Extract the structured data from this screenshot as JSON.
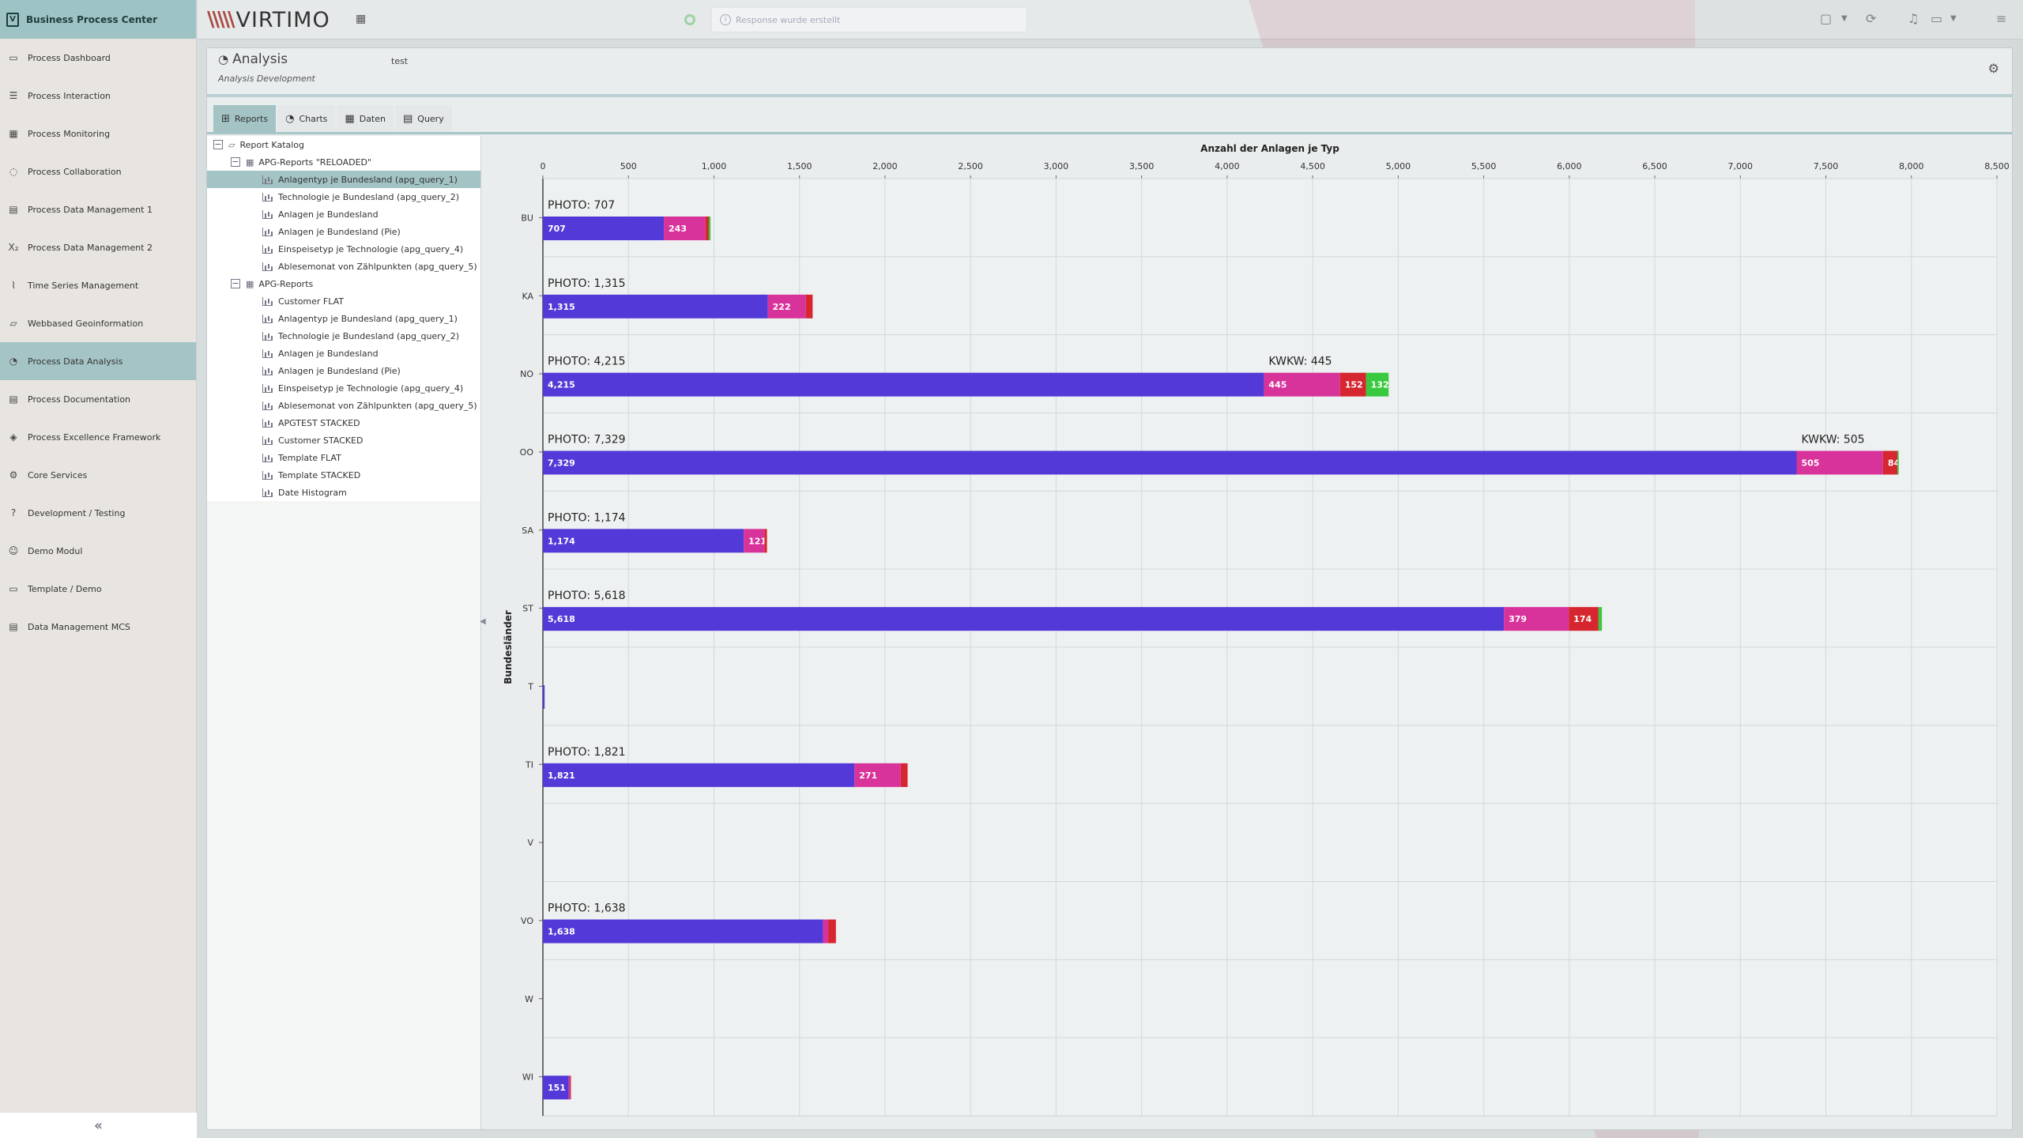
{
  "app": {
    "title": "Business Process Center"
  },
  "sidebar": {
    "items": [
      {
        "label": "Process Dashboard",
        "icon": "monitor-icon"
      },
      {
        "label": "Process Interaction",
        "icon": "list-icon"
      },
      {
        "label": "Process Monitoring",
        "icon": "table-icon"
      },
      {
        "label": "Process Collaboration",
        "icon": "chat-icon"
      },
      {
        "label": "Process Data Management 1",
        "icon": "database-icon"
      },
      {
        "label": "Process Data Management 2",
        "icon": "subscript-icon"
      },
      {
        "label": "Time Series Management",
        "icon": "line-chart-icon"
      },
      {
        "label": "Webbased Geoinformation",
        "icon": "map-icon"
      },
      {
        "label": "Process Data Analysis",
        "icon": "pie-icon"
      },
      {
        "label": "Process Documentation",
        "icon": "document-icon"
      },
      {
        "label": "Process Excellence Framework",
        "icon": "shield-icon"
      },
      {
        "label": "Core Services",
        "icon": "cogs-icon"
      },
      {
        "label": "Development / Testing",
        "icon": "question-icon"
      },
      {
        "label": "Demo Modul",
        "icon": "robot-icon"
      },
      {
        "label": "Template / Demo",
        "icon": "laptop-icon"
      },
      {
        "label": "Data Management MCS",
        "icon": "database-icon"
      }
    ],
    "active_index": 8,
    "collapse_label": "«"
  },
  "topbar": {
    "brand": "VIRTIMO",
    "brand_mark": "\\\\\\\\\\",
    "response_placeholder": "Response wurde erstellt"
  },
  "panel": {
    "title": "Analysis",
    "subtitle": "Analysis Development",
    "extra": "test"
  },
  "tabs": [
    {
      "label": "Reports",
      "icon": "sitemap-icon"
    },
    {
      "label": "Charts",
      "icon": "pie-chart-icon"
    },
    {
      "label": "Daten",
      "icon": "table-icon"
    },
    {
      "label": "Query",
      "icon": "database-icon"
    }
  ],
  "tree": [
    {
      "label": "Report Katalog",
      "level": 0,
      "type": "folder",
      "toggle": "−"
    },
    {
      "label": "APG-Reports \"RELOADED\"",
      "level": 1,
      "type": "group",
      "toggle": "−"
    },
    {
      "label": "Anlagentyp je Bundesland (apg_query_1)",
      "level": 2,
      "type": "report",
      "selected": true
    },
    {
      "label": "Technologie je Bundesland (apg_query_2)",
      "level": 2,
      "type": "report"
    },
    {
      "label": "Anlagen je Bundesland",
      "level": 2,
      "type": "report"
    },
    {
      "label": "Anlagen je Bundesland (Pie)",
      "level": 2,
      "type": "report"
    },
    {
      "label": "Einspeisetyp je Technologie (apg_query_4)",
      "level": 2,
      "type": "report"
    },
    {
      "label": "Ablesemonat von Zählpunkten (apg_query_5)",
      "level": 2,
      "type": "report"
    },
    {
      "label": "APG-Reports",
      "level": 1,
      "type": "group",
      "toggle": "−"
    },
    {
      "label": "Customer FLAT",
      "level": 2,
      "type": "report"
    },
    {
      "label": "Anlagentyp je Bundesland (apg_query_1)",
      "level": 2,
      "type": "report"
    },
    {
      "label": "Technologie je Bundesland (apg_query_2)",
      "level": 2,
      "type": "report"
    },
    {
      "label": "Anlagen je Bundesland",
      "level": 2,
      "type": "report"
    },
    {
      "label": "Anlagen je Bundesland (Pie)",
      "level": 2,
      "type": "report"
    },
    {
      "label": "Einspeisetyp je Technologie (apg_query_4)",
      "level": 2,
      "type": "report"
    },
    {
      "label": "Ablesemonat von Zählpunkten (apg_query_5)",
      "level": 2,
      "type": "report"
    },
    {
      "label": "APGTEST STACKED",
      "level": 2,
      "type": "report"
    },
    {
      "label": "Customer STACKED",
      "level": 2,
      "type": "report"
    },
    {
      "label": "Template FLAT",
      "level": 2,
      "type": "report"
    },
    {
      "label": "Template STACKED",
      "level": 2,
      "type": "report"
    },
    {
      "label": "Date Histogram",
      "level": 2,
      "type": "report"
    }
  ],
  "chart_data": {
    "type": "bar",
    "orientation": "horizontal",
    "stacked": true,
    "title": "Anzahl der Anlagen je Typ",
    "ylabel": "Bundesländer",
    "xlim": [
      0,
      8500
    ],
    "x_ticks": [
      0,
      500,
      1000,
      1500,
      2000,
      2500,
      3000,
      3500,
      4000,
      4500,
      5000,
      5500,
      6000,
      6500,
      7000,
      7500,
      8000,
      8500
    ],
    "grid": true,
    "categories": [
      "BU",
      "KA",
      "NO",
      "OO",
      "SA",
      "ST",
      "T",
      "TI",
      "V",
      "VO",
      "W",
      "WI"
    ],
    "series": [
      {
        "values": [
          707,
          1315,
          4215,
          7329,
          1174,
          5618,
          10,
          1821,
          0,
          1638,
          0,
          151
        ],
        "color": "#533ad8"
      },
      {
        "values": [
          243,
          222,
          445,
          505,
          121,
          379,
          0,
          271,
          0,
          30,
          0,
          8
        ],
        "color": "#d8339a"
      },
      {
        "values": [
          20,
          40,
          152,
          84,
          15,
          174,
          0,
          40,
          0,
          45,
          0,
          5
        ],
        "color": "#d6262f"
      },
      {
        "values": [
          10,
          0,
          132,
          8,
          0,
          20,
          0,
          0,
          0,
          0,
          0,
          0
        ],
        "color": "#38c93f"
      }
    ],
    "bar_labels": [
      [
        "707",
        "243",
        "",
        ""
      ],
      [
        "1,315",
        "222",
        "",
        ""
      ],
      [
        "4,215",
        "445",
        "152",
        "132"
      ],
      [
        "7,329",
        "505",
        "84",
        ""
      ],
      [
        "1,174",
        "121",
        "",
        ""
      ],
      [
        "5,618",
        "379",
        "174",
        ""
      ],
      [
        "",
        "",
        "",
        ""
      ],
      [
        "1,821",
        "271",
        "",
        ""
      ],
      [
        "",
        "",
        "",
        ""
      ],
      [
        "1,638",
        "",
        "",
        ""
      ],
      [
        "",
        "",
        "",
        ""
      ],
      [
        "151",
        "",
        "",
        ""
      ]
    ],
    "annotations": [
      {
        "category": "BU",
        "text": "PHOTO: 707"
      },
      {
        "category": "KA",
        "text": "PHOTO: 1,315"
      },
      {
        "category": "NO",
        "text": "PHOTO: 4,215"
      },
      {
        "category": "NO",
        "text": "KWKW: 445",
        "at_value": 4215
      },
      {
        "category": "OO",
        "text": "PHOTO: 7,329"
      },
      {
        "category": "OO",
        "text": "KWKW: 505",
        "at_value": 7329
      },
      {
        "category": "SA",
        "text": "PHOTO: 1,174"
      },
      {
        "category": "ST",
        "text": "PHOTO: 5,618"
      },
      {
        "category": "TI",
        "text": "PHOTO: 1,821"
      },
      {
        "category": "VO",
        "text": "PHOTO: 1,638"
      }
    ]
  }
}
